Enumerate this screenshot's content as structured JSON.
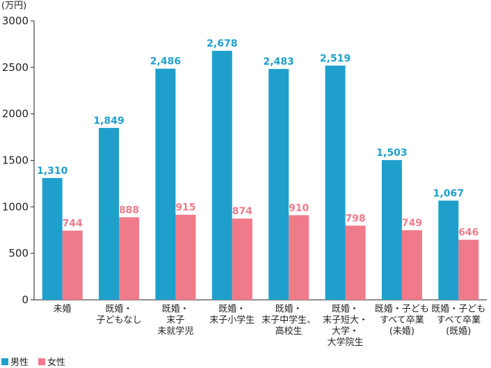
{
  "chart_data": {
    "type": "bar",
    "unit_label": "(万円)",
    "categories": [
      [
        "未婚"
      ],
      [
        "既婚・",
        "子どもなし"
      ],
      [
        "既婚・",
        "末子",
        "未就学児"
      ],
      [
        "既婚・",
        "末子小学生"
      ],
      [
        "既婚・",
        "末子中学生、",
        "高校生"
      ],
      [
        "既婚・",
        "末子短大・",
        "大学・",
        "大学院生"
      ],
      [
        "既婚・子ども",
        "すべて卒業",
        "(未婚)"
      ],
      [
        "既婚・子ども",
        "すべて卒業",
        "(既婚)"
      ]
    ],
    "series": [
      {
        "name": "男性",
        "color": "#1fa0cc",
        "values": [
          1310,
          1849,
          2486,
          2678,
          2483,
          2519,
          1503,
          1067
        ],
        "labels": [
          "1,310",
          "1,849",
          "2,486",
          "2,678",
          "2,483",
          "2,519",
          "1,503",
          "1,067"
        ]
      },
      {
        "name": "女性",
        "color": "#ef7b8a",
        "values": [
          744,
          888,
          915,
          874,
          910,
          798,
          749,
          646
        ],
        "labels": [
          "744",
          "888",
          "915",
          "874",
          "910",
          "798",
          "749",
          "646"
        ]
      }
    ],
    "ylim": [
      0,
      3000
    ],
    "yticks": [
      0,
      500,
      1000,
      1500,
      2000,
      2500,
      3000
    ],
    "grid": false,
    "legend_position": "bottom-left"
  }
}
